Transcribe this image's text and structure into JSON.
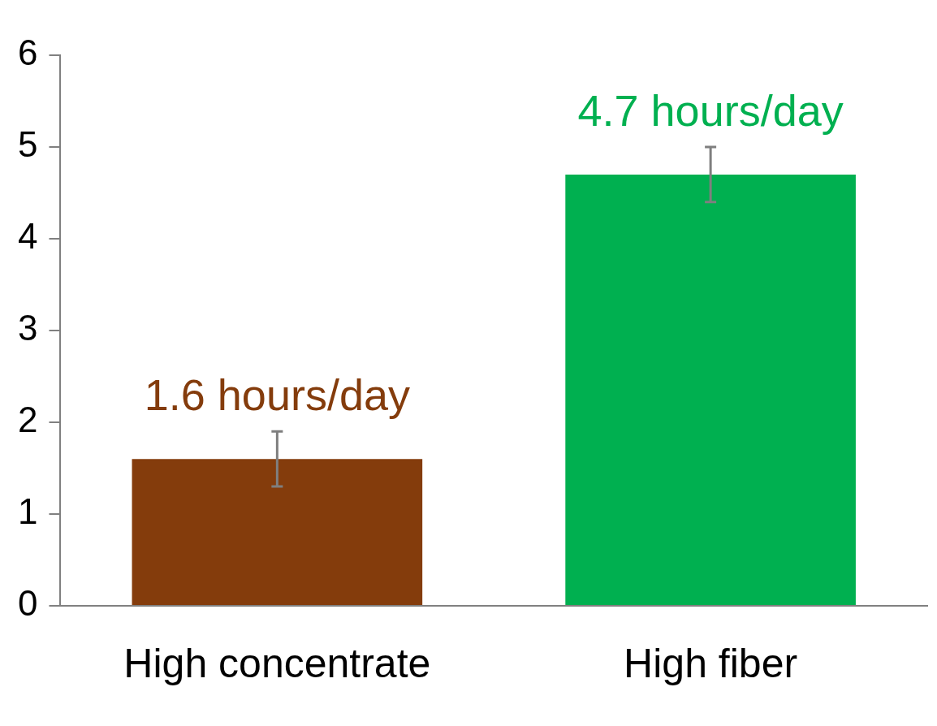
{
  "chart_data": {
    "type": "bar",
    "categories": [
      "High concentrate",
      "High fiber"
    ],
    "values": [
      1.6,
      4.7
    ],
    "colors": [
      "#843c0c",
      "#00b050"
    ],
    "errors": [
      0.3,
      0.3
    ],
    "value_labels": [
      "1.6 hours/day",
      "4.7 hours/day"
    ],
    "ylim": [
      0,
      6
    ],
    "yticks": [
      0,
      1,
      2,
      3,
      4,
      5,
      6
    ],
    "grid": false,
    "legend": false
  }
}
